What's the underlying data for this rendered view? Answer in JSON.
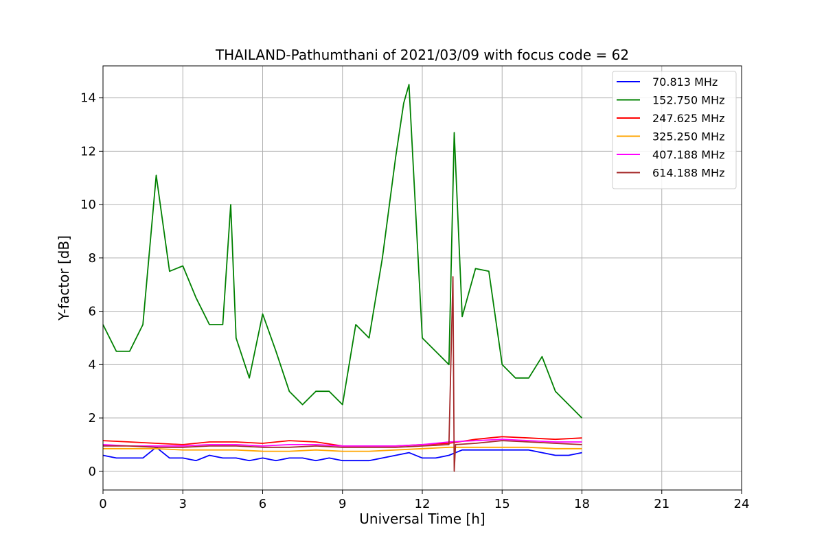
{
  "chart_data": {
    "type": "line",
    "title": "THAILAND-Pathumthani of 2021/03/09 with focus code = 62",
    "xlabel": "Universal Time [h]",
    "ylabel": "Y-factor [dB]",
    "xlim": [
      0,
      24
    ],
    "ylim": [
      -0.7,
      15.2
    ],
    "xticks": [
      0,
      3,
      6,
      9,
      12,
      15,
      18,
      21,
      24
    ],
    "yticks": [
      0,
      2,
      4,
      6,
      8,
      10,
      12,
      14
    ],
    "grid": true,
    "legend_position": "top-right",
    "series": [
      {
        "name": " 70.813 MHz",
        "color": "#0000ff",
        "x": [
          0.0,
          0.5,
          1.0,
          1.5,
          2.0,
          2.5,
          3.0,
          3.5,
          4.0,
          4.5,
          5.0,
          5.5,
          6.0,
          6.5,
          7.0,
          7.5,
          8.0,
          8.5,
          9.0,
          9.5,
          10.0,
          10.5,
          11.0,
          11.5,
          12.0,
          12.5,
          13.0,
          13.5,
          14.0,
          14.5,
          15.0,
          15.5,
          16.0,
          16.5,
          17.0,
          17.5,
          18.0
        ],
        "y": [
          0.6,
          0.5,
          0.5,
          0.5,
          0.9,
          0.5,
          0.5,
          0.4,
          0.6,
          0.5,
          0.5,
          0.4,
          0.5,
          0.4,
          0.5,
          0.5,
          0.4,
          0.5,
          0.4,
          0.4,
          0.4,
          0.5,
          0.6,
          0.7,
          0.5,
          0.5,
          0.6,
          0.8,
          0.8,
          0.8,
          0.8,
          0.8,
          0.8,
          0.7,
          0.6,
          0.6,
          0.7
        ]
      },
      {
        "name": "152.750 MHz",
        "color": "#008000",
        "x": [
          0.0,
          0.5,
          1.0,
          1.5,
          2.0,
          2.5,
          3.0,
          3.5,
          4.0,
          4.5,
          4.8,
          5.0,
          5.5,
          6.0,
          6.5,
          7.0,
          7.5,
          8.0,
          8.5,
          9.0,
          9.5,
          10.0,
          10.5,
          11.0,
          11.3,
          11.5,
          12.0,
          12.5,
          13.0,
          13.2,
          13.5,
          14.0,
          14.5,
          15.0,
          15.5,
          16.0,
          16.5,
          17.0,
          17.5,
          18.0
        ],
        "y": [
          5.5,
          4.5,
          4.5,
          5.5,
          11.1,
          7.5,
          7.7,
          6.5,
          5.5,
          5.5,
          10.0,
          5.0,
          3.5,
          5.9,
          4.5,
          3.0,
          2.5,
          3.0,
          3.0,
          2.5,
          5.5,
          5.0,
          8.0,
          11.8,
          13.8,
          14.5,
          5.0,
          4.5,
          4.0,
          12.7,
          5.8,
          7.6,
          7.5,
          4.0,
          3.5,
          3.5,
          4.3,
          3.0,
          2.5,
          2.0
        ]
      },
      {
        "name": "247.625 MHz",
        "color": "#ff0000",
        "x": [
          0.0,
          1.0,
          2.0,
          3.0,
          4.0,
          5.0,
          6.0,
          7.0,
          8.0,
          9.0,
          10.0,
          11.0,
          12.0,
          13.0,
          14.0,
          15.0,
          16.0,
          17.0,
          18.0
        ],
        "y": [
          1.15,
          1.1,
          1.05,
          1.0,
          1.1,
          1.1,
          1.05,
          1.15,
          1.1,
          0.95,
          0.95,
          0.95,
          1.0,
          1.05,
          1.2,
          1.3,
          1.25,
          1.2,
          1.25
        ]
      },
      {
        "name": "325.250 MHz",
        "color": "#ffa500",
        "x": [
          0.0,
          1.0,
          2.0,
          3.0,
          4.0,
          5.0,
          6.0,
          7.0,
          8.0,
          9.0,
          10.0,
          11.0,
          12.0,
          13.0,
          14.0,
          15.0,
          16.0,
          17.0,
          18.0
        ],
        "y": [
          0.85,
          0.85,
          0.85,
          0.8,
          0.8,
          0.8,
          0.75,
          0.75,
          0.8,
          0.75,
          0.75,
          0.8,
          0.85,
          0.9,
          0.9,
          0.9,
          0.9,
          0.85,
          0.85
        ]
      },
      {
        "name": "407.188 MHz",
        "color": "#ff00ff",
        "x": [
          0.0,
          1.0,
          2.0,
          3.0,
          4.0,
          5.0,
          6.0,
          7.0,
          8.0,
          9.0,
          10.0,
          11.0,
          12.0,
          13.0,
          14.0,
          15.0,
          16.0,
          17.0,
          18.0
        ],
        "y": [
          1.0,
          0.95,
          0.95,
          0.95,
          1.0,
          1.0,
          0.95,
          1.0,
          1.0,
          0.95,
          0.95,
          0.95,
          1.0,
          1.1,
          1.15,
          1.2,
          1.15,
          1.1,
          1.1
        ]
      },
      {
        "name": "614.188 MHz",
        "color": "#a52a2a",
        "x": [
          0.0,
          1.0,
          2.0,
          3.0,
          4.0,
          5.0,
          6.0,
          7.0,
          8.0,
          9.0,
          10.0,
          11.0,
          12.0,
          13.0,
          13.15,
          13.2,
          13.25,
          14.0,
          15.0,
          16.0,
          17.0,
          18.0
        ],
        "y": [
          0.95,
          0.95,
          0.9,
          0.9,
          0.95,
          0.95,
          0.9,
          0.9,
          0.95,
          0.9,
          0.9,
          0.9,
          0.95,
          1.0,
          7.3,
          0.0,
          1.0,
          1.05,
          1.15,
          1.1,
          1.05,
          1.0
        ]
      }
    ]
  }
}
